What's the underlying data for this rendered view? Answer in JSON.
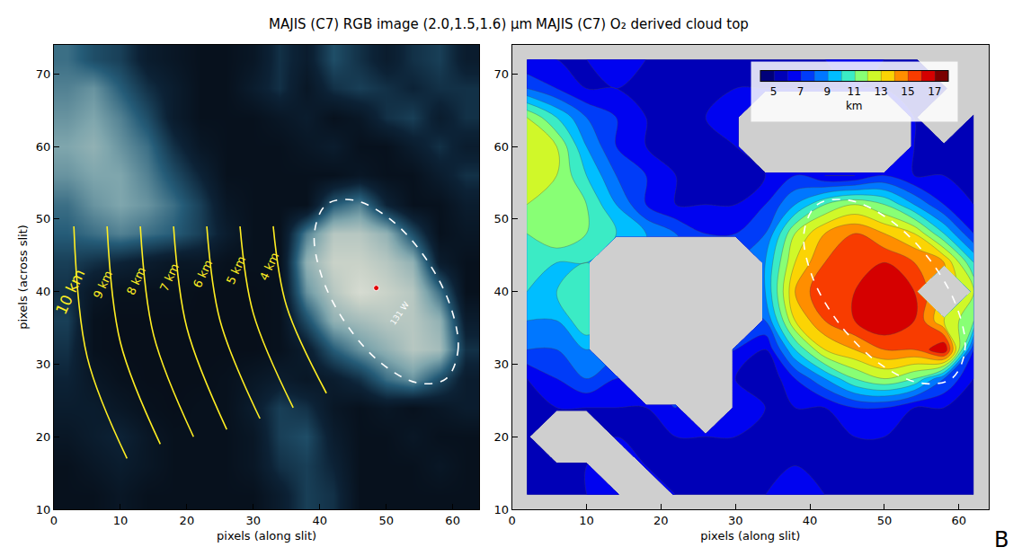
{
  "chart_data": [
    {
      "type": "heatmap",
      "title": "MAJIS (C7) RGB image (2.0,1.5,1.6) μm",
      "x_label": "pixels (along slit)",
      "y_label": "pixels (across slit)",
      "xlim": [
        0,
        64
      ],
      "ylim": [
        10,
        74
      ],
      "xticks": [
        0,
        10,
        20,
        30,
        40,
        50,
        60
      ],
      "yticks": [
        10,
        20,
        30,
        40,
        50,
        60,
        70
      ],
      "zlim": [
        0,
        1
      ],
      "x": [
        2,
        6,
        10,
        14,
        18,
        22,
        26,
        30,
        34,
        38,
        42,
        46,
        50,
        54,
        58,
        62
      ],
      "y": [
        12,
        16,
        20,
        24,
        28,
        32,
        36,
        40,
        44,
        48,
        52,
        56,
        60,
        64,
        68,
        72
      ],
      "cells": [
        [
          0.1,
          0.1,
          0.15,
          0.1,
          0.1,
          0.1,
          0.1,
          0.1,
          0.2,
          0.35,
          0.3,
          0.1,
          0.1,
          0.1,
          0.1,
          0.1
        ],
        [
          0.1,
          0.15,
          0.2,
          0.15,
          0.1,
          0.1,
          0.1,
          0.15,
          0.3,
          0.35,
          0.25,
          0.1,
          0.1,
          0.1,
          0.15,
          0.1
        ],
        [
          0.15,
          0.2,
          0.25,
          0.15,
          0.1,
          0.1,
          0.1,
          0.15,
          0.35,
          0.4,
          0.2,
          0.1,
          0.1,
          0.15,
          0.1,
          0.1
        ],
        [
          0.2,
          0.2,
          0.15,
          0.1,
          0.08,
          0.1,
          0.1,
          0.2,
          0.35,
          0.3,
          0.15,
          0.1,
          0.15,
          0.1,
          0.15,
          0.2
        ],
        [
          0.25,
          0.15,
          0.1,
          0.08,
          0.08,
          0.08,
          0.1,
          0.15,
          0.2,
          0.15,
          0.2,
          0.3,
          0.5,
          0.6,
          0.4,
          0.2
        ],
        [
          0.3,
          0.1,
          0.08,
          0.08,
          0.08,
          0.08,
          0.08,
          0.08,
          0.1,
          0.2,
          0.45,
          0.6,
          0.7,
          0.8,
          0.75,
          0.3
        ],
        [
          0.35,
          0.1,
          0.08,
          0.08,
          0.08,
          0.08,
          0.08,
          0.08,
          0.1,
          0.4,
          0.7,
          0.75,
          0.8,
          0.8,
          0.7,
          0.2
        ],
        [
          0.3,
          0.15,
          0.1,
          0.1,
          0.1,
          0.08,
          0.08,
          0.08,
          0.1,
          0.6,
          0.8,
          0.9,
          0.85,
          0.8,
          0.5,
          0.1
        ],
        [
          0.35,
          0.3,
          0.25,
          0.2,
          0.15,
          0.15,
          0.1,
          0.1,
          0.1,
          0.7,
          0.85,
          0.85,
          0.8,
          0.7,
          0.2,
          0.1
        ],
        [
          0.45,
          0.5,
          0.55,
          0.5,
          0.45,
          0.35,
          0.2,
          0.1,
          0.1,
          0.55,
          0.8,
          0.8,
          0.7,
          0.4,
          0.1,
          0.15
        ],
        [
          0.5,
          0.6,
          0.65,
          0.6,
          0.5,
          0.35,
          0.15,
          0.1,
          0.1,
          0.1,
          0.45,
          0.55,
          0.25,
          0.1,
          0.1,
          0.2
        ],
        [
          0.6,
          0.65,
          0.65,
          0.55,
          0.4,
          0.25,
          0.1,
          0.1,
          0.1,
          0.1,
          0.1,
          0.15,
          0.1,
          0.1,
          0.2,
          0.3
        ],
        [
          0.65,
          0.7,
          0.6,
          0.5,
          0.3,
          0.15,
          0.1,
          0.1,
          0.1,
          0.15,
          0.2,
          0.1,
          0.1,
          0.2,
          0.3,
          0.2
        ],
        [
          0.6,
          0.65,
          0.55,
          0.4,
          0.2,
          0.1,
          0.1,
          0.1,
          0.15,
          0.2,
          0.1,
          0.15,
          0.3,
          0.35,
          0.2,
          0.3
        ],
        [
          0.55,
          0.6,
          0.45,
          0.3,
          0.2,
          0.1,
          0.1,
          0.2,
          0.3,
          0.15,
          0.3,
          0.35,
          0.3,
          0.25,
          0.3,
          0.3
        ],
        [
          0.5,
          0.4,
          0.35,
          0.2,
          0.15,
          0.1,
          0.1,
          0.15,
          0.3,
          0.2,
          0.4,
          0.3,
          0.2,
          0.3,
          0.35,
          0.2
        ]
      ],
      "range_lines": [
        {
          "label": "4 km",
          "x": [
            33,
            35,
            41
          ],
          "y": [
            49,
            38,
            26
          ]
        },
        {
          "label": "5 km",
          "x": [
            28,
            30,
            36
          ],
          "y": [
            49,
            37,
            24
          ]
        },
        {
          "label": "6 km",
          "x": [
            23,
            25,
            31
          ],
          "y": [
            49,
            36,
            22.5
          ]
        },
        {
          "label": "7 km",
          "x": [
            18,
            20,
            26
          ],
          "y": [
            49,
            35,
            21
          ]
        },
        {
          "label": "8 km",
          "x": [
            13,
            15,
            21
          ],
          "y": [
            49,
            34,
            20
          ]
        },
        {
          "label": "9 km",
          "x": [
            8,
            10,
            16
          ],
          "y": [
            49,
            33,
            19
          ]
        },
        {
          "label": "10 km",
          "x": [
            3,
            5,
            11
          ],
          "y": [
            49,
            31,
            17
          ]
        }
      ],
      "ellipse": {
        "x": [
          59,
          60.8,
          59.7,
          56,
          50.7,
          45.2,
          41,
          39.2,
          40.3,
          44,
          49.3,
          54.8
        ],
        "y": [
          28,
          31.9,
          37.9,
          44.5,
          49.9,
          52.6,
          52,
          48.1,
          42.1,
          35.5,
          30.1,
          27.4
        ]
      },
      "point": {
        "x": 48.5,
        "y": 40.5
      },
      "point_label": {
        "text": "131 W",
        "x": 52,
        "y": 37
      }
    },
    {
      "type": "contour",
      "title": "MAJIS (C7) O₂ derived cloud top",
      "x_label": "pixels (along slit)",
      "xlim": [
        0,
        64
      ],
      "ylim": [
        10,
        74
      ],
      "xticks": [
        0,
        10,
        20,
        30,
        40,
        50,
        60
      ],
      "yticks": [
        10,
        20,
        30,
        40,
        50,
        60,
        70
      ],
      "zlim": [
        4,
        18
      ],
      "zticks": [
        5,
        7,
        9,
        11,
        13,
        15,
        17
      ],
      "colorbar_title": "km",
      "panel_label": "B",
      "x": [
        2,
        6,
        10,
        14,
        18,
        22,
        26,
        30,
        34,
        38,
        42,
        46,
        50,
        54,
        58,
        62
      ],
      "y": [
        12,
        16,
        20,
        24,
        28,
        32,
        36,
        40,
        44,
        48,
        52,
        56,
        60,
        64,
        68,
        72
      ],
      "cells": [
        [
          6,
          6,
          6,
          7,
          null,
          6,
          6,
          6,
          6,
          7,
          6,
          6,
          6,
          6,
          6,
          6
        ],
        [
          6,
          6,
          6,
          null,
          6,
          6,
          5,
          6,
          6,
          6,
          6,
          6,
          6,
          6,
          6,
          6
        ],
        [
          6,
          null,
          null,
          6,
          6,
          6,
          6,
          6,
          6,
          6,
          6,
          6,
          6,
          6,
          6,
          6
        ],
        [
          6,
          6,
          6,
          6,
          6,
          7,
          null,
          7,
          6,
          6,
          6,
          7,
          7,
          6,
          6,
          6
        ],
        [
          6,
          7,
          8,
          7,
          null,
          null,
          null,
          6,
          5,
          7,
          9,
          11,
          12,
          11,
          8,
          6
        ],
        [
          8,
          8,
          9,
          null,
          null,
          null,
          null,
          7,
          6,
          10,
          13,
          14,
          15,
          15,
          17,
          7
        ],
        [
          9,
          9,
          11,
          null,
          null,
          null,
          null,
          null,
          8,
          13,
          15,
          16,
          17,
          16,
          13,
          11
        ],
        [
          10,
          10,
          11,
          null,
          null,
          null,
          null,
          null,
          9,
          14,
          16,
          16,
          17,
          16,
          null,
          12
        ],
        [
          11,
          10,
          10,
          null,
          null,
          null,
          null,
          null,
          9,
          13,
          15,
          16,
          16,
          15,
          14,
          10
        ],
        [
          11,
          12,
          11,
          10,
          9,
          8,
          7,
          7,
          8,
          12,
          14,
          15,
          14,
          13,
          10,
          7
        ],
        [
          12,
          12,
          11,
          9,
          7,
          6,
          6,
          6,
          7,
          9,
          11,
          12,
          11,
          9,
          7,
          6
        ],
        [
          13,
          12,
          10,
          8,
          7,
          6,
          6,
          6,
          6,
          7,
          6,
          6,
          7,
          6,
          6,
          6
        ],
        [
          13,
          12,
          9,
          7,
          6,
          6,
          5,
          6,
          null,
          null,
          null,
          null,
          null,
          6,
          6,
          6
        ],
        [
          12,
          10,
          8,
          7,
          6,
          5,
          6,
          7,
          null,
          null,
          null,
          null,
          null,
          6,
          null,
          6
        ],
        [
          8,
          7,
          6,
          6,
          6,
          6,
          5,
          6,
          6,
          6,
          6,
          6,
          6,
          6,
          6,
          null
        ],
        [
          6,
          6,
          6,
          7,
          6,
          5,
          6,
          5,
          6,
          6,
          6,
          7,
          6,
          6,
          null,
          null
        ]
      ]
    }
  ]
}
